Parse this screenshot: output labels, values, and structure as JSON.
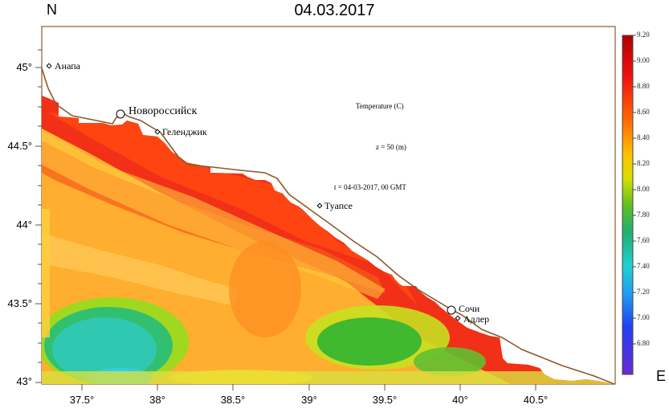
{
  "title": "04.03.2017",
  "north_label": "N",
  "east_label": "E",
  "y_ticks": [
    "45°",
    "44.5°",
    "44°",
    "43.5°",
    "43°"
  ],
  "x_ticks": [
    "37.5°",
    "38°",
    "38.5°",
    "39°",
    "39.5°",
    "40°",
    "40.5°"
  ],
  "colorbar": {
    "labels": [
      "9.20",
      "9.00",
      "8.80",
      "8.60",
      "8.40",
      "8.20",
      "8.00",
      "7.80",
      "7.60",
      "7.40",
      "7.20",
      "7.00",
      "6.80"
    ]
  },
  "annotations": {
    "variable": "Temperature (C)",
    "depth": "z = 50 (m)",
    "time": "t = 04-03-2017, 00 GMT"
  },
  "cities": [
    "Анапа",
    "Новороссийск",
    "Геленджик",
    "Туапсе",
    "Сочи",
    "Адлер"
  ],
  "colors": {
    "coast": "#8b5a2b",
    "scale_low": "#6a2ad0",
    "scale_high": "#b00000"
  }
}
